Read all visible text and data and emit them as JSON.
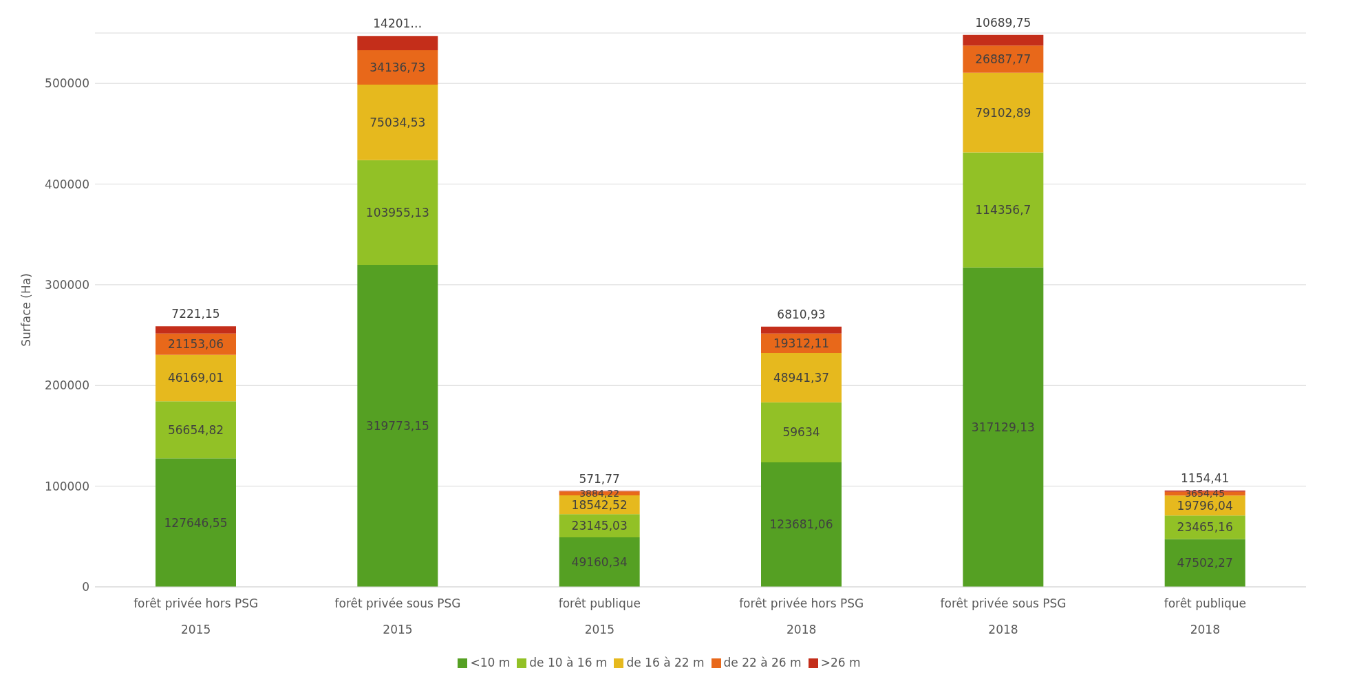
{
  "chart_data": {
    "type": "bar",
    "stacked": true,
    "ylabel": "Surface (Ha)",
    "categories": [
      "forêt privée hors PSG\n2015",
      "forêt privée sous PSG\n2015",
      "forêt publique\n2015",
      "forêt privée hors PSG\n2018",
      "forêt privée sous PSG\n2018",
      "forêt publique\n2018"
    ],
    "series": [
      {
        "name": "<10 m",
        "color": "#55a023",
        "values": [
          127646.55,
          319773.15,
          49160.34,
          123681.06,
          317129.13,
          47502.27
        ],
        "value_labels": [
          "127646,55",
          "319773,15",
          "49160,34",
          "123681,06",
          "317129,13",
          "47502,27"
        ]
      },
      {
        "name": "de 10 à 16 m",
        "color": "#92c126",
        "values": [
          56654.82,
          103955.13,
          23145.03,
          59634,
          114356.7,
          23465.16
        ],
        "value_labels": [
          "56654,82",
          "103955,13",
          "23145,03",
          "59634",
          "114356,7",
          "23465,16"
        ]
      },
      {
        "name": "de 16 à 22 m",
        "color": "#e6b91e",
        "values": [
          46169.01,
          75034.53,
          18542.52,
          48941.37,
          79102.89,
          19796.04
        ],
        "value_labels": [
          "46169,01",
          "75034,53",
          "18542,52",
          "48941,37",
          "79102,89",
          "19796,04"
        ]
      },
      {
        "name": "de 22 à 26 m",
        "color": "#e8681a",
        "values": [
          21153.06,
          34136.73,
          3884.22,
          19312.11,
          26887.77,
          3654.45
        ],
        "value_labels": [
          "21153,06",
          "34136,73",
          "3884,22",
          "19312,11",
          "26887,77",
          "3654,45"
        ]
      },
      {
        "name": ">26 m",
        "color": "#c42e1a",
        "values": [
          7221.15,
          14201,
          571.77,
          6810.93,
          10689.75,
          1154.41
        ],
        "value_labels": [
          "7221,15",
          "14201…",
          "571,77",
          "6810,93",
          "10689,75",
          "1154,41"
        ]
      }
    ],
    "ylim": [
      0,
      550000
    ],
    "yticks": [
      0,
      100000,
      200000,
      300000,
      400000,
      500000
    ],
    "grid": "y",
    "legend": "bottom"
  }
}
